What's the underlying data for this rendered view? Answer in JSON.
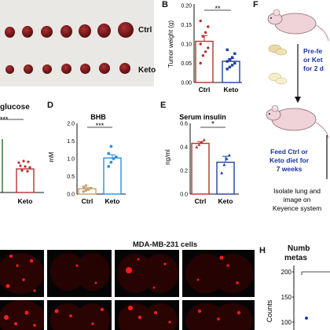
{
  "panels": {
    "A": {
      "tags": [
        "Ctrl",
        "Keto"
      ]
    },
    "B": {
      "letter": "B",
      "chart_data": {
        "type": "bar",
        "categories": [
          "Ctrl",
          "Keto"
        ],
        "values": [
          0.107,
          0.055
        ],
        "points": [
          [
            0.05,
            0.07,
            0.08,
            0.09,
            0.1,
            0.12,
            0.13,
            0.145,
            0.16
          ],
          [
            0.035,
            0.04,
            0.045,
            0.05,
            0.055,
            0.06,
            0.065,
            0.075,
            0.085
          ]
        ],
        "errors": [
          0.015,
          0.007
        ],
        "ylabel": "Tumor weight (g)",
        "ylim": [
          0,
          0.2
        ],
        "ticks": [
          "0.00",
          "0.05",
          "0.10",
          "0.15",
          "0.20"
        ],
        "sig": "**"
      }
    },
    "C": {
      "title": "glucose",
      "sig": "***",
      "xlabel": "Keto"
    },
    "D": {
      "letter": "D",
      "chart_data": {
        "type": "bar",
        "title": "BHB",
        "categories": [
          "Ctrl",
          "Keto"
        ],
        "values": [
          0.15,
          1.02
        ],
        "points": [
          [
            0.07,
            0.1,
            0.13,
            0.17,
            0.2,
            0.24
          ],
          [
            0.78,
            0.9,
            1.0,
            1.05,
            1.15,
            1.35
          ]
        ],
        "errors": [
          0.03,
          0.09
        ],
        "ylabel": "mM",
        "ylim": [
          0,
          2.0
        ],
        "ticks": [
          "0.0",
          "0.5",
          "1.0",
          "1.5",
          "2.0"
        ],
        "sig": "***"
      }
    },
    "E": {
      "letter": "E",
      "chart_data": {
        "type": "bar",
        "title": "Serum insulin",
        "categories": [
          "Ctrl",
          "Keto"
        ],
        "values": [
          0.43,
          0.27
        ],
        "points": [
          [
            0.4,
            0.42,
            0.44,
            0.46
          ],
          [
            0.18,
            0.25,
            0.3,
            0.33
          ]
        ],
        "errors": [
          0.015,
          0.05
        ],
        "ylabel": "ng/ml",
        "ylim": [
          0,
          0.6
        ],
        "ticks": [
          "0.0",
          "0.2",
          "0.4",
          "0.6"
        ],
        "sig": "*"
      }
    },
    "F": {
      "letter": "F",
      "pre_fed": [
        "Pre-fe",
        "or Ket",
        "for 2 d"
      ],
      "feed": [
        "Feed Ctrl or",
        "Keto diet for",
        "7 weeks"
      ],
      "isolate": [
        "Isolate lung and",
        "image on",
        "Keyence system"
      ]
    },
    "G": {
      "title": "MDA-MB-231 cells"
    },
    "H": {
      "letter": "H",
      "title": [
        "Numb",
        "metas"
      ],
      "chart_data": {
        "type": "scatter",
        "ylabel": "Counts",
        "ticks": [
          "200",
          "150",
          "100"
        ],
        "ylim": [
          100,
          200
        ],
        "points": [
          108
        ]
      }
    }
  },
  "colors": {
    "ctrl": "#b5322f",
    "keto": "#1f3fa6",
    "bhb_ctrl": "#c9a06a",
    "bhb_keto": "#2a8fe0",
    "arrow_text": "#1a33a0"
  }
}
